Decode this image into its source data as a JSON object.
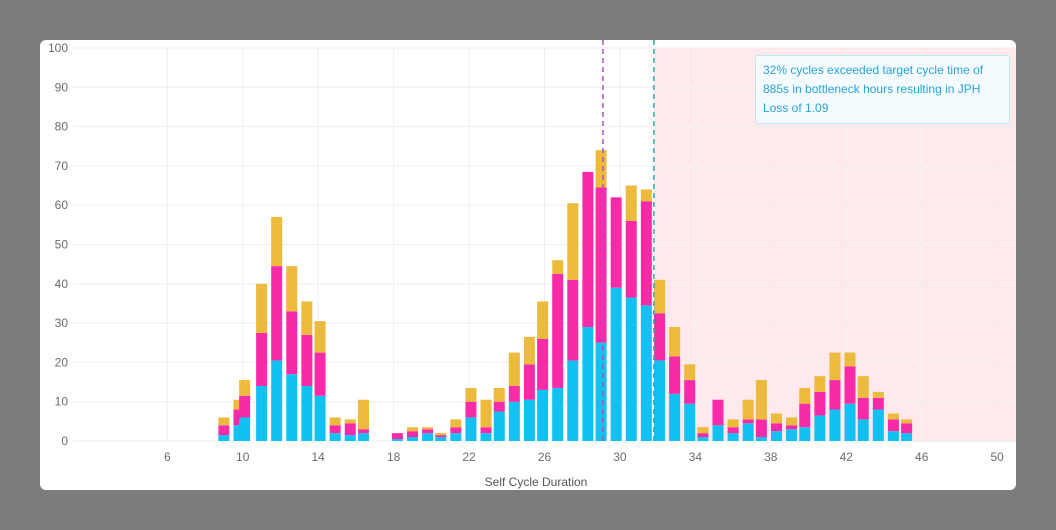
{
  "annotation": "32% cycles exceeded target cycle time of 885s in bottleneck hours resulting in JPH Loss of 1.09",
  "colors": {
    "series": [
      "#12c0f2",
      "#f72ba8",
      "#ecba3c"
    ],
    "target_line": "#29a8b8",
    "avg_line": "#b64cc7",
    "exceed_region": "#ffe9ec",
    "grid": "#eeeeee"
  },
  "chart_data": {
    "type": "bar",
    "stacked": true,
    "xlabel": "Self Cycle Duration",
    "ylabel": "",
    "xlim": [
      1,
      51
    ],
    "ylim": [
      0,
      100
    ],
    "x_ticks": [
      6,
      10,
      14,
      18,
      22,
      26,
      30,
      34,
      38,
      42,
      46,
      50
    ],
    "y_ticks": [
      0,
      10,
      20,
      30,
      40,
      50,
      60,
      70,
      80,
      90,
      100
    ],
    "grid": true,
    "x": [
      9,
      9.8,
      10.1,
      11,
      11.8,
      12.6,
      13.4,
      14.1,
      14.9,
      15.7,
      16.4,
      18.2,
      19,
      19.8,
      20.5,
      21.3,
      22.1,
      22.9,
      23.6,
      24.4,
      25.2,
      25.9,
      26.7,
      27.5,
      28.3,
      29,
      29.8,
      30.6,
      31.4,
      32.1,
      32.9,
      33.7,
      34.4,
      35.2,
      36,
      36.8,
      37.5,
      38.3,
      39.1,
      39.8,
      40.6,
      41.4,
      42.2,
      42.9,
      43.7,
      44.5,
      45.2,
      46
    ],
    "series": [
      {
        "values": [
          1.5,
          4,
          6,
          14,
          20.5,
          17,
          14,
          11.5,
          2,
          1.5,
          2,
          0.5,
          1,
          2,
          1,
          2,
          6,
          2,
          7.5,
          10,
          10.5,
          13,
          13.5,
          20.5,
          29,
          25,
          39,
          36.5,
          34.5,
          20.5,
          12,
          9.5,
          1,
          4,
          2,
          4.5,
          1,
          2.5,
          3,
          3.5,
          6.5,
          8,
          9.5,
          5.5,
          8,
          2.5,
          2,
          0
        ]
      },
      {
        "values": [
          2.5,
          4,
          5.5,
          13.5,
          24,
          16,
          13,
          11,
          2,
          3,
          1,
          1.5,
          1.5,
          1,
          0.5,
          1.5,
          4,
          1.5,
          2.5,
          4,
          9,
          13,
          29,
          20.5,
          39.5,
          39.5,
          23,
          19.5,
          26.5,
          12,
          9.5,
          6,
          1,
          6.5,
          1.5,
          1,
          4.5,
          2,
          1,
          6,
          6,
          7.5,
          9.5,
          5.5,
          3,
          3,
          2.5,
          0
        ]
      },
      {
        "values": [
          2,
          2.5,
          4,
          12.5,
          12.5,
          11.5,
          8.5,
          8,
          2,
          1,
          7.5,
          0,
          1,
          0.5,
          0.5,
          2,
          3.5,
          7,
          3.5,
          8.5,
          7,
          9.5,
          3.5,
          19.5,
          0,
          9.5,
          0,
          9,
          3,
          8.5,
          7.5,
          4,
          1.5,
          0,
          2,
          5,
          10,
          2.5,
          2,
          4,
          4,
          7,
          3.5,
          5.5,
          1.5,
          1.5,
          1,
          0
        ]
      }
    ],
    "vertical_lines": [
      {
        "x": 29.1,
        "style": "dashed",
        "color": "#b64cc7"
      },
      {
        "x": 31.8,
        "style": "dashed",
        "color": "#29a8b8"
      }
    ],
    "shaded_region": {
      "from": 31.8,
      "to": 51
    }
  }
}
